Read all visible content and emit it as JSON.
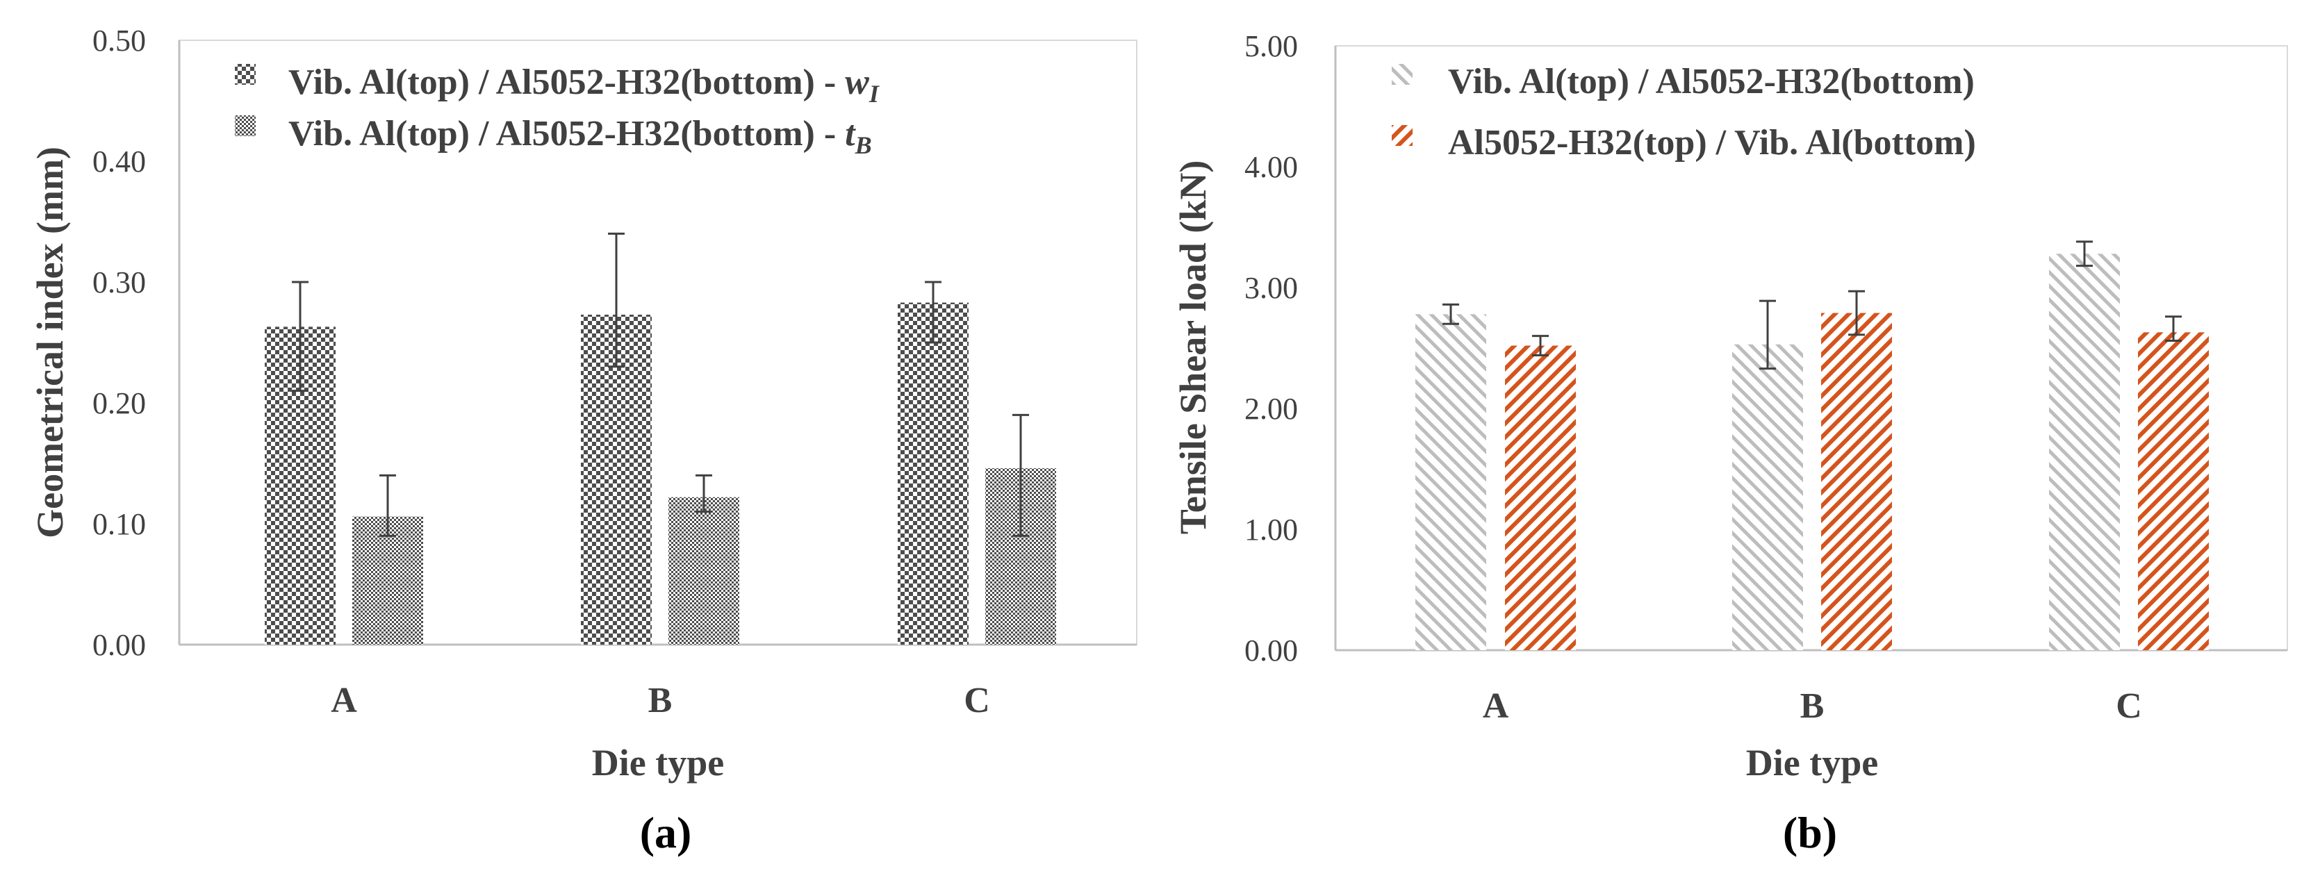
{
  "colors": {
    "axis": "#bfbfbf",
    "text": "#404040",
    "check_dark": "#4d4d4d",
    "stripe_gray": "#bdbdbd",
    "stripe_orange": "#d5541c",
    "error_bar": "#404040"
  },
  "chart_data": [
    {
      "type": "bar",
      "panel_label": "(a)",
      "xlabel": "Die type",
      "ylabel": "Geometrical index (mm)",
      "categories": [
        "A",
        "B",
        "C"
      ],
      "ylim": [
        0,
        0.5
      ],
      "yticks": [
        "0.00",
        "0.10",
        "0.20",
        "0.30",
        "0.40",
        "0.50"
      ],
      "legend_placement": "top-left",
      "series": [
        {
          "name": "Vib. Al(top) / Al5052-H32(bottom) - ",
          "symbol": "w",
          "subscript": "I",
          "pattern": "coarse-checker",
          "values": [
            0.263,
            0.273,
            0.283
          ],
          "err_low": [
            0.21,
            0.23,
            0.25
          ],
          "err_high": [
            0.3,
            0.34,
            0.3
          ]
        },
        {
          "name": "Vib. Al(top) / Al5052-H32(bottom) - ",
          "symbol": "t",
          "subscript": "B",
          "pattern": "fine-checker",
          "values": [
            0.106,
            0.122,
            0.146
          ],
          "err_low": [
            0.09,
            0.11,
            0.09
          ],
          "err_high": [
            0.14,
            0.14,
            0.19
          ]
        }
      ]
    },
    {
      "type": "bar",
      "panel_label": "(b)",
      "xlabel": "Die type",
      "ylabel": "Tensile Shear load (kN)",
      "categories": [
        "A",
        "B",
        "C"
      ],
      "ylim": [
        0,
        5
      ],
      "yticks": [
        "0.00",
        "1.00",
        "2.00",
        "3.00",
        "4.00",
        "5.00"
      ],
      "legend_placement": "top-left",
      "series": [
        {
          "name": "Vib. Al(top) / Al5052-H32(bottom)",
          "pattern": "gray-diagonal",
          "values": [
            2.78,
            2.53,
            3.28
          ],
          "err_low": [
            2.7,
            2.33,
            3.18
          ],
          "err_high": [
            2.86,
            2.89,
            3.38
          ]
        },
        {
          "name": "Al5052-H32(top) / Vib. Al(bottom)",
          "pattern": "orange-diagonal",
          "values": [
            2.52,
            2.79,
            2.63
          ],
          "err_low": [
            2.44,
            2.61,
            2.56
          ],
          "err_high": [
            2.6,
            2.97,
            2.76
          ]
        }
      ]
    }
  ]
}
